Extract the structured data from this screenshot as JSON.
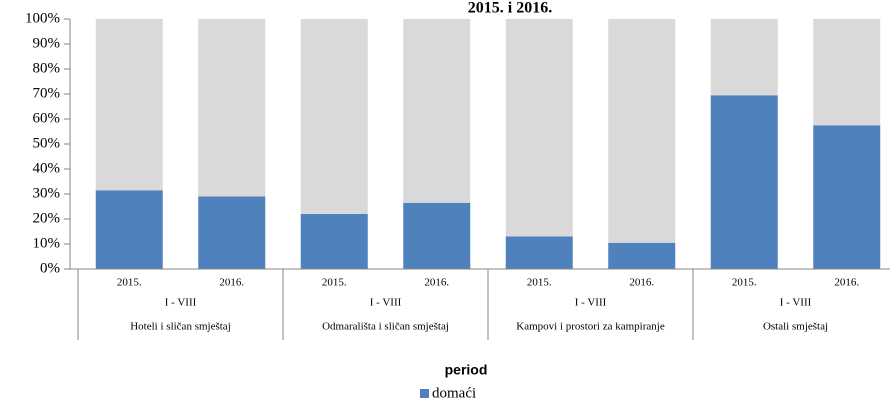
{
  "chart_data": {
    "type": "stacked_bar_100",
    "title": "2015. i 2016.",
    "categories": [
      "2015.",
      "2016.",
      "2015.",
      "2016.",
      "2015.",
      "2016.",
      "2015.",
      "2016."
    ],
    "periods": [
      "I - VIII",
      "I - VIII",
      "I - VIII",
      "I - VIII"
    ],
    "groups": [
      "Hoteli i sličan smještaj",
      "Odmarališta i sličan smještaj",
      "Kampovi i prostori za kampiranje",
      "Ostali smještaj"
    ],
    "series": [
      {
        "name": "domaći",
        "color": "#4f81bd",
        "values": [
          31.5,
          29,
          22,
          26.5,
          13,
          10.5,
          69.5,
          57.5
        ]
      },
      {
        "color": "#d9d9d9",
        "values": [
          68.5,
          71,
          78,
          73.5,
          87,
          89.5,
          30.5,
          42.5
        ]
      }
    ],
    "legend_title": "period",
    "ylim": [
      0,
      100
    ],
    "yticks": [
      {
        "value": 0,
        "label": "0%"
      },
      {
        "value": 10,
        "label": "10%"
      },
      {
        "value": 20,
        "label": "20%"
      },
      {
        "value": 30,
        "label": "30%"
      },
      {
        "value": 40,
        "label": "40%"
      },
      {
        "value": 50,
        "label": "50%"
      },
      {
        "value": 60,
        "label": "60%"
      },
      {
        "value": 70,
        "label": "70%"
      },
      {
        "value": 80,
        "label": "80%"
      },
      {
        "value": 90,
        "label": "90%"
      },
      {
        "value": 100,
        "label": "100%"
      }
    ]
  }
}
